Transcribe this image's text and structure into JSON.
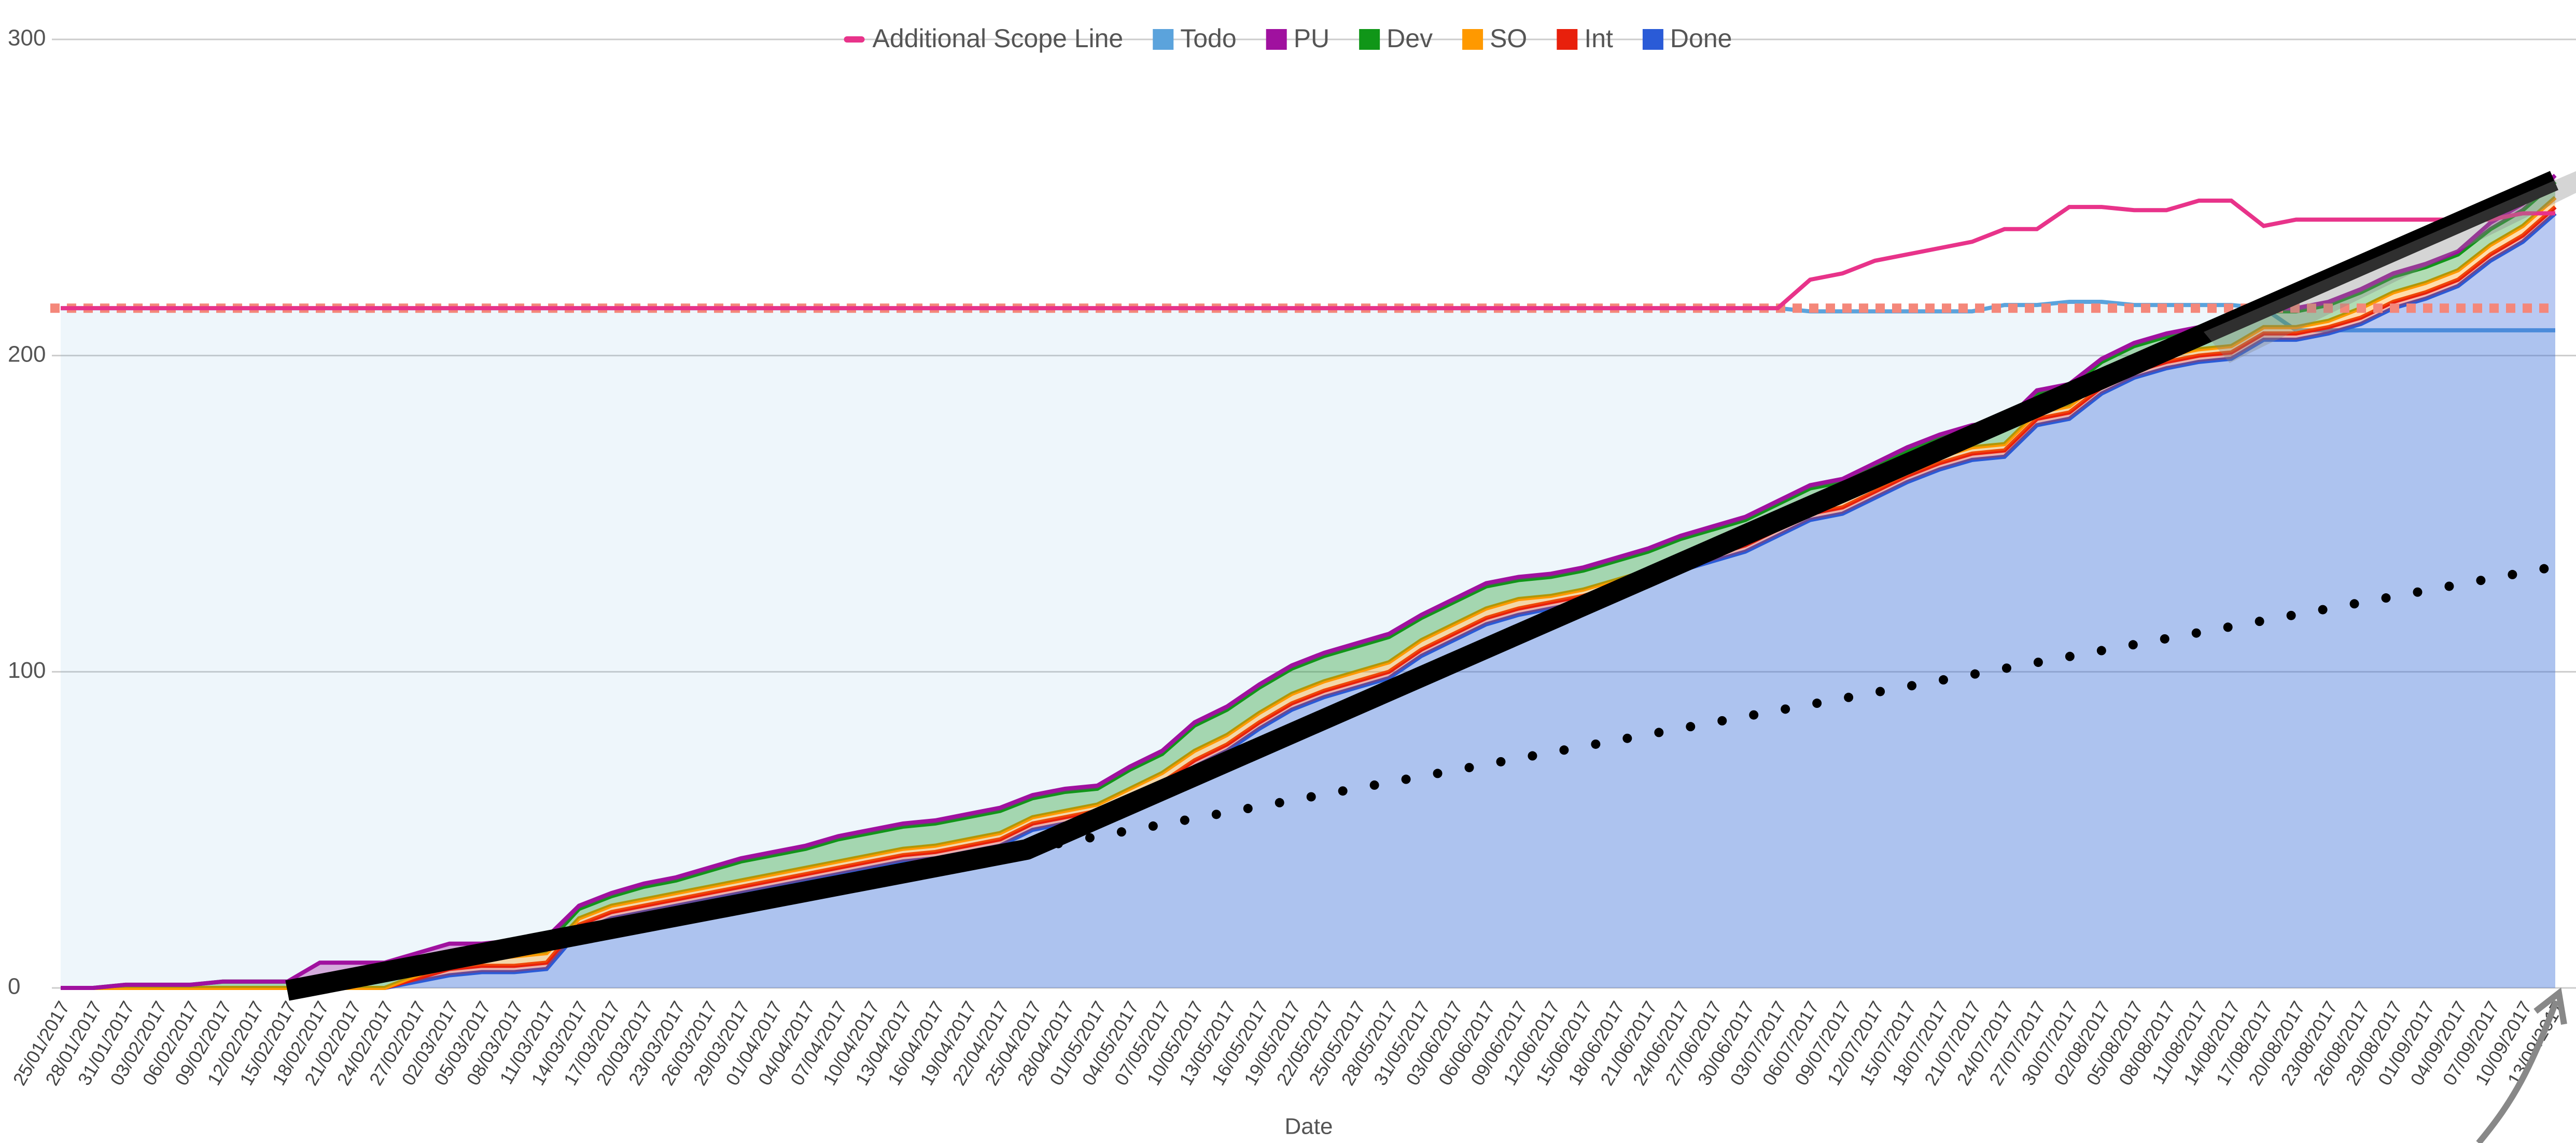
{
  "chart_data": {
    "type": "stacked_area",
    "x_label": "Date",
    "ylim": [
      0,
      300
    ],
    "yticks": [
      0,
      100,
      200,
      300
    ],
    "grid": true,
    "legend": "top",
    "categories": [
      "25/01/2017",
      "28/01/2017",
      "31/01/2017",
      "03/02/2017",
      "06/02/2017",
      "09/02/2017",
      "12/02/2017",
      "15/02/2017",
      "18/02/2017",
      "21/02/2017",
      "24/02/2017",
      "27/02/2017",
      "02/03/2017",
      "05/03/2017",
      "08/03/2017",
      "11/03/2017",
      "14/03/2017",
      "17/03/2017",
      "20/03/2017",
      "23/03/2017",
      "26/03/2017",
      "29/03/2017",
      "01/04/2017",
      "04/04/2017",
      "07/04/2017",
      "10/04/2017",
      "13/04/2017",
      "16/04/2017",
      "19/04/2017",
      "22/04/2017",
      "25/04/2017",
      "28/04/2017",
      "01/05/2017",
      "04/05/2017",
      "07/05/2017",
      "10/05/2017",
      "13/05/2017",
      "16/05/2017",
      "19/05/2017",
      "22/05/2017",
      "25/05/2017",
      "28/05/2017",
      "31/05/2017",
      "03/06/2017",
      "06/06/2017",
      "09/06/2017",
      "12/06/2017",
      "15/06/2017",
      "18/06/2017",
      "21/06/2017",
      "24/06/2017",
      "27/06/2017",
      "30/06/2017",
      "03/07/2017",
      "06/07/2017",
      "09/07/2017",
      "12/07/2017",
      "15/07/2017",
      "18/07/2017",
      "21/07/2017",
      "24/07/2017",
      "27/07/2017",
      "30/07/2017",
      "02/08/2017",
      "05/08/2017",
      "08/08/2017",
      "11/08/2017",
      "14/08/2017",
      "17/08/2017",
      "20/08/2017",
      "23/08/2017",
      "26/08/2017",
      "29/08/2017",
      "01/09/2017",
      "04/09/2017",
      "07/09/2017",
      "10/09/2017",
      "13/09/2017"
    ],
    "reference_line": {
      "value": 215,
      "color": "#f4877a"
    },
    "series": [
      {
        "name": "Additional Scope Line",
        "color": "#e8338a",
        "kind": "line",
        "values": [
          215,
          215,
          215,
          215,
          215,
          215,
          215,
          215,
          215,
          215,
          215,
          215,
          215,
          215,
          215,
          215,
          215,
          215,
          215,
          215,
          215,
          215,
          215,
          215,
          215,
          215,
          215,
          215,
          215,
          215,
          215,
          215,
          215,
          215,
          215,
          215,
          215,
          215,
          215,
          215,
          215,
          215,
          215,
          215,
          215,
          215,
          215,
          215,
          215,
          215,
          215,
          215,
          215,
          215,
          224,
          226,
          230,
          232,
          234,
          236,
          240,
          240,
          247,
          247,
          246,
          246,
          249,
          249,
          241,
          243,
          243,
          243,
          243,
          243,
          243,
          243,
          245,
          245
        ]
      },
      {
        "name": "Todo",
        "color": "#5ba3dc",
        "kind": "area",
        "values": [
          215,
          215,
          215,
          215,
          215,
          215,
          215,
          215,
          215,
          215,
          215,
          215,
          215,
          215,
          215,
          215,
          215,
          215,
          215,
          215,
          215,
          215,
          215,
          215,
          215,
          215,
          215,
          215,
          215,
          215,
          215,
          215,
          215,
          215,
          215,
          215,
          215,
          215,
          215,
          215,
          215,
          215,
          215,
          215,
          215,
          215,
          215,
          215,
          215,
          215,
          215,
          215,
          215,
          215,
          214,
          214,
          214,
          214,
          214,
          214,
          216,
          216,
          217,
          217,
          216,
          216,
          216,
          216,
          215,
          208,
          208,
          208,
          208,
          208,
          208,
          208,
          208,
          208
        ]
      },
      {
        "name": "PU",
        "color": "#a0119f",
        "kind": "stacked",
        "values": [
          0,
          0,
          0,
          0,
          0,
          0,
          0,
          0,
          5,
          5,
          5,
          4,
          3,
          2,
          2,
          2,
          1,
          1,
          1,
          1,
          1,
          1,
          1,
          1,
          1,
          1,
          1,
          1,
          1,
          1,
          1,
          1,
          1,
          1,
          1,
          1,
          1,
          1,
          1,
          1,
          1,
          1,
          1,
          1,
          1,
          1,
          1,
          1,
          1,
          1,
          1,
          1,
          1,
          1,
          1,
          1,
          1,
          1,
          1,
          1,
          1,
          1,
          1,
          1,
          1,
          1,
          1,
          1,
          1,
          1,
          1,
          1,
          1,
          1,
          1,
          2,
          2,
          2
        ]
      },
      {
        "name": "Dev",
        "color": "#109618",
        "kind": "stacked",
        "values": [
          0,
          0,
          1,
          1,
          1,
          2,
          2,
          2,
          3,
          3,
          3,
          3,
          3,
          3,
          3,
          3,
          3,
          3,
          4,
          4,
          5,
          6,
          6,
          6,
          7,
          7,
          7,
          7,
          7,
          7,
          6,
          6,
          5,
          6,
          6,
          8,
          8,
          8,
          8,
          8,
          8,
          8,
          7,
          7,
          7,
          6,
          6,
          6,
          6,
          6,
          6,
          6,
          6,
          6,
          6,
          6,
          6,
          6,
          6,
          6,
          6,
          6,
          6,
          6,
          6,
          6,
          6,
          6,
          5,
          5,
          5,
          5,
          5,
          5,
          5,
          5,
          5,
          5
        ]
      },
      {
        "name": "SO",
        "color": "#ff9900",
        "kind": "stacked",
        "values": [
          0,
          0,
          0,
          0,
          0,
          0,
          0,
          0,
          0,
          0,
          0,
          1,
          2,
          2,
          3,
          3,
          2,
          2,
          2,
          2,
          2,
          2,
          2,
          2,
          2,
          2,
          2,
          2,
          2,
          2,
          2,
          2,
          2,
          3,
          3,
          3,
          3,
          3,
          3,
          3,
          3,
          3,
          3,
          3,
          3,
          3,
          2,
          2,
          2,
          2,
          2,
          2,
          2,
          2,
          2,
          2,
          2,
          2,
          2,
          2,
          2,
          2,
          2,
          2,
          2,
          2,
          2,
          2,
          2,
          2,
          2,
          3,
          3,
          3,
          3,
          3,
          3,
          3
        ]
      },
      {
        "name": "Int",
        "color": "#e8200c",
        "kind": "stacked",
        "values": [
          0,
          0,
          0,
          0,
          0,
          0,
          0,
          0,
          0,
          0,
          0,
          1,
          2,
          2,
          2,
          2,
          2,
          2,
          2,
          2,
          2,
          2,
          2,
          2,
          2,
          2,
          2,
          2,
          2,
          2,
          2,
          2,
          2,
          2,
          2,
          2,
          2,
          2,
          2,
          2,
          2,
          2,
          2,
          2,
          2,
          2,
          2,
          2,
          2,
          2,
          2,
          2,
          2,
          2,
          2,
          2,
          2,
          2,
          2,
          2,
          2,
          2,
          2,
          2,
          2,
          2,
          2,
          2,
          2,
          2,
          2,
          2,
          2,
          2,
          2,
          2,
          2,
          2
        ]
      },
      {
        "name": "Done",
        "color": "#2a5bd7",
        "kind": "stacked",
        "values": [
          0,
          0,
          0,
          0,
          0,
          0,
          0,
          0,
          0,
          0,
          0,
          2,
          4,
          5,
          5,
          6,
          18,
          22,
          24,
          26,
          28,
          30,
          32,
          34,
          36,
          38,
          40,
          41,
          43,
          45,
          50,
          52,
          54,
          58,
          63,
          70,
          75,
          82,
          88,
          92,
          95,
          98,
          105,
          110,
          115,
          118,
          120,
          122,
          125,
          128,
          132,
          135,
          138,
          143,
          148,
          150,
          155,
          160,
          164,
          167,
          168,
          178,
          180,
          188,
          193,
          196,
          198,
          199,
          205,
          205,
          207,
          210,
          215,
          218,
          222,
          230,
          236,
          245
        ]
      }
    ]
  }
}
